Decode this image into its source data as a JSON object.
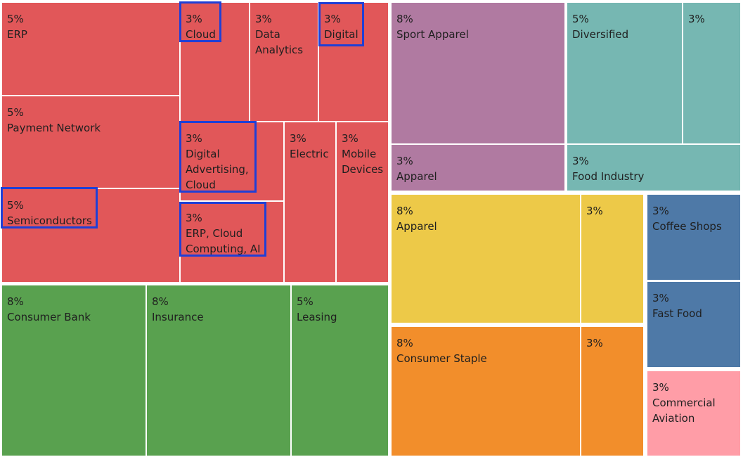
{
  "chart_data": {
    "type": "treemap",
    "groups": [
      {
        "color": "#e15759",
        "items": [
          {
            "share": "5%",
            "label": "ERP"
          },
          {
            "share": "3%",
            "label": "Cloud",
            "highlighted": true
          },
          {
            "share": "3%",
            "label": "Data\nAnalytics"
          },
          {
            "share": "3%",
            "label": "Digital",
            "highlighted": true
          },
          {
            "share": "5%",
            "label": "Payment Network"
          },
          {
            "share": "3%",
            "label": "Digital\nAdvertising,\nCloud",
            "highlighted": true
          },
          {
            "share": "",
            "label": ""
          },
          {
            "share": "3%",
            "label": "Electric"
          },
          {
            "share": "3%",
            "label": "Mobile\nDevices"
          },
          {
            "share": "5%",
            "label": "Semiconductors",
            "highlighted": true
          },
          {
            "share": "3%",
            "label": "ERP, Cloud\nComputing, AI",
            "highlighted": true
          },
          {
            "share": "",
            "label": ""
          }
        ]
      },
      {
        "color": "#59a14f",
        "items": [
          {
            "share": "8%",
            "label": "Consumer Bank"
          },
          {
            "share": "8%",
            "label": "Insurance"
          },
          {
            "share": "5%",
            "label": "Leasing"
          }
        ]
      },
      {
        "color": "#b07aa1",
        "items": [
          {
            "share": "8%",
            "label": "Sport Apparel"
          },
          {
            "share": "3%",
            "label": "Apparel"
          }
        ]
      },
      {
        "color": "#76b7b2",
        "items": [
          {
            "share": "5%",
            "label": "Diversified"
          },
          {
            "share": "3%",
            "label": ""
          },
          {
            "share": "3%",
            "label": "Food Industry"
          }
        ]
      },
      {
        "color": "#edc948",
        "items": [
          {
            "share": "8%",
            "label": "Apparel"
          },
          {
            "share": "3%",
            "label": ""
          }
        ]
      },
      {
        "color": "#f28e2b",
        "items": [
          {
            "share": "8%",
            "label": "Consumer Staple"
          },
          {
            "share": "3%",
            "label": ""
          }
        ]
      },
      {
        "color": "#4e79a7",
        "items": [
          {
            "share": "3%",
            "label": "Coffee Shops"
          },
          {
            "share": "3%",
            "label": "Fast Food"
          }
        ]
      },
      {
        "color": "#ff9da7",
        "items": [
          {
            "share": "3%",
            "label": "Commercial\nAviation"
          }
        ]
      }
    ],
    "highlight_color": "#1f3fd6"
  }
}
